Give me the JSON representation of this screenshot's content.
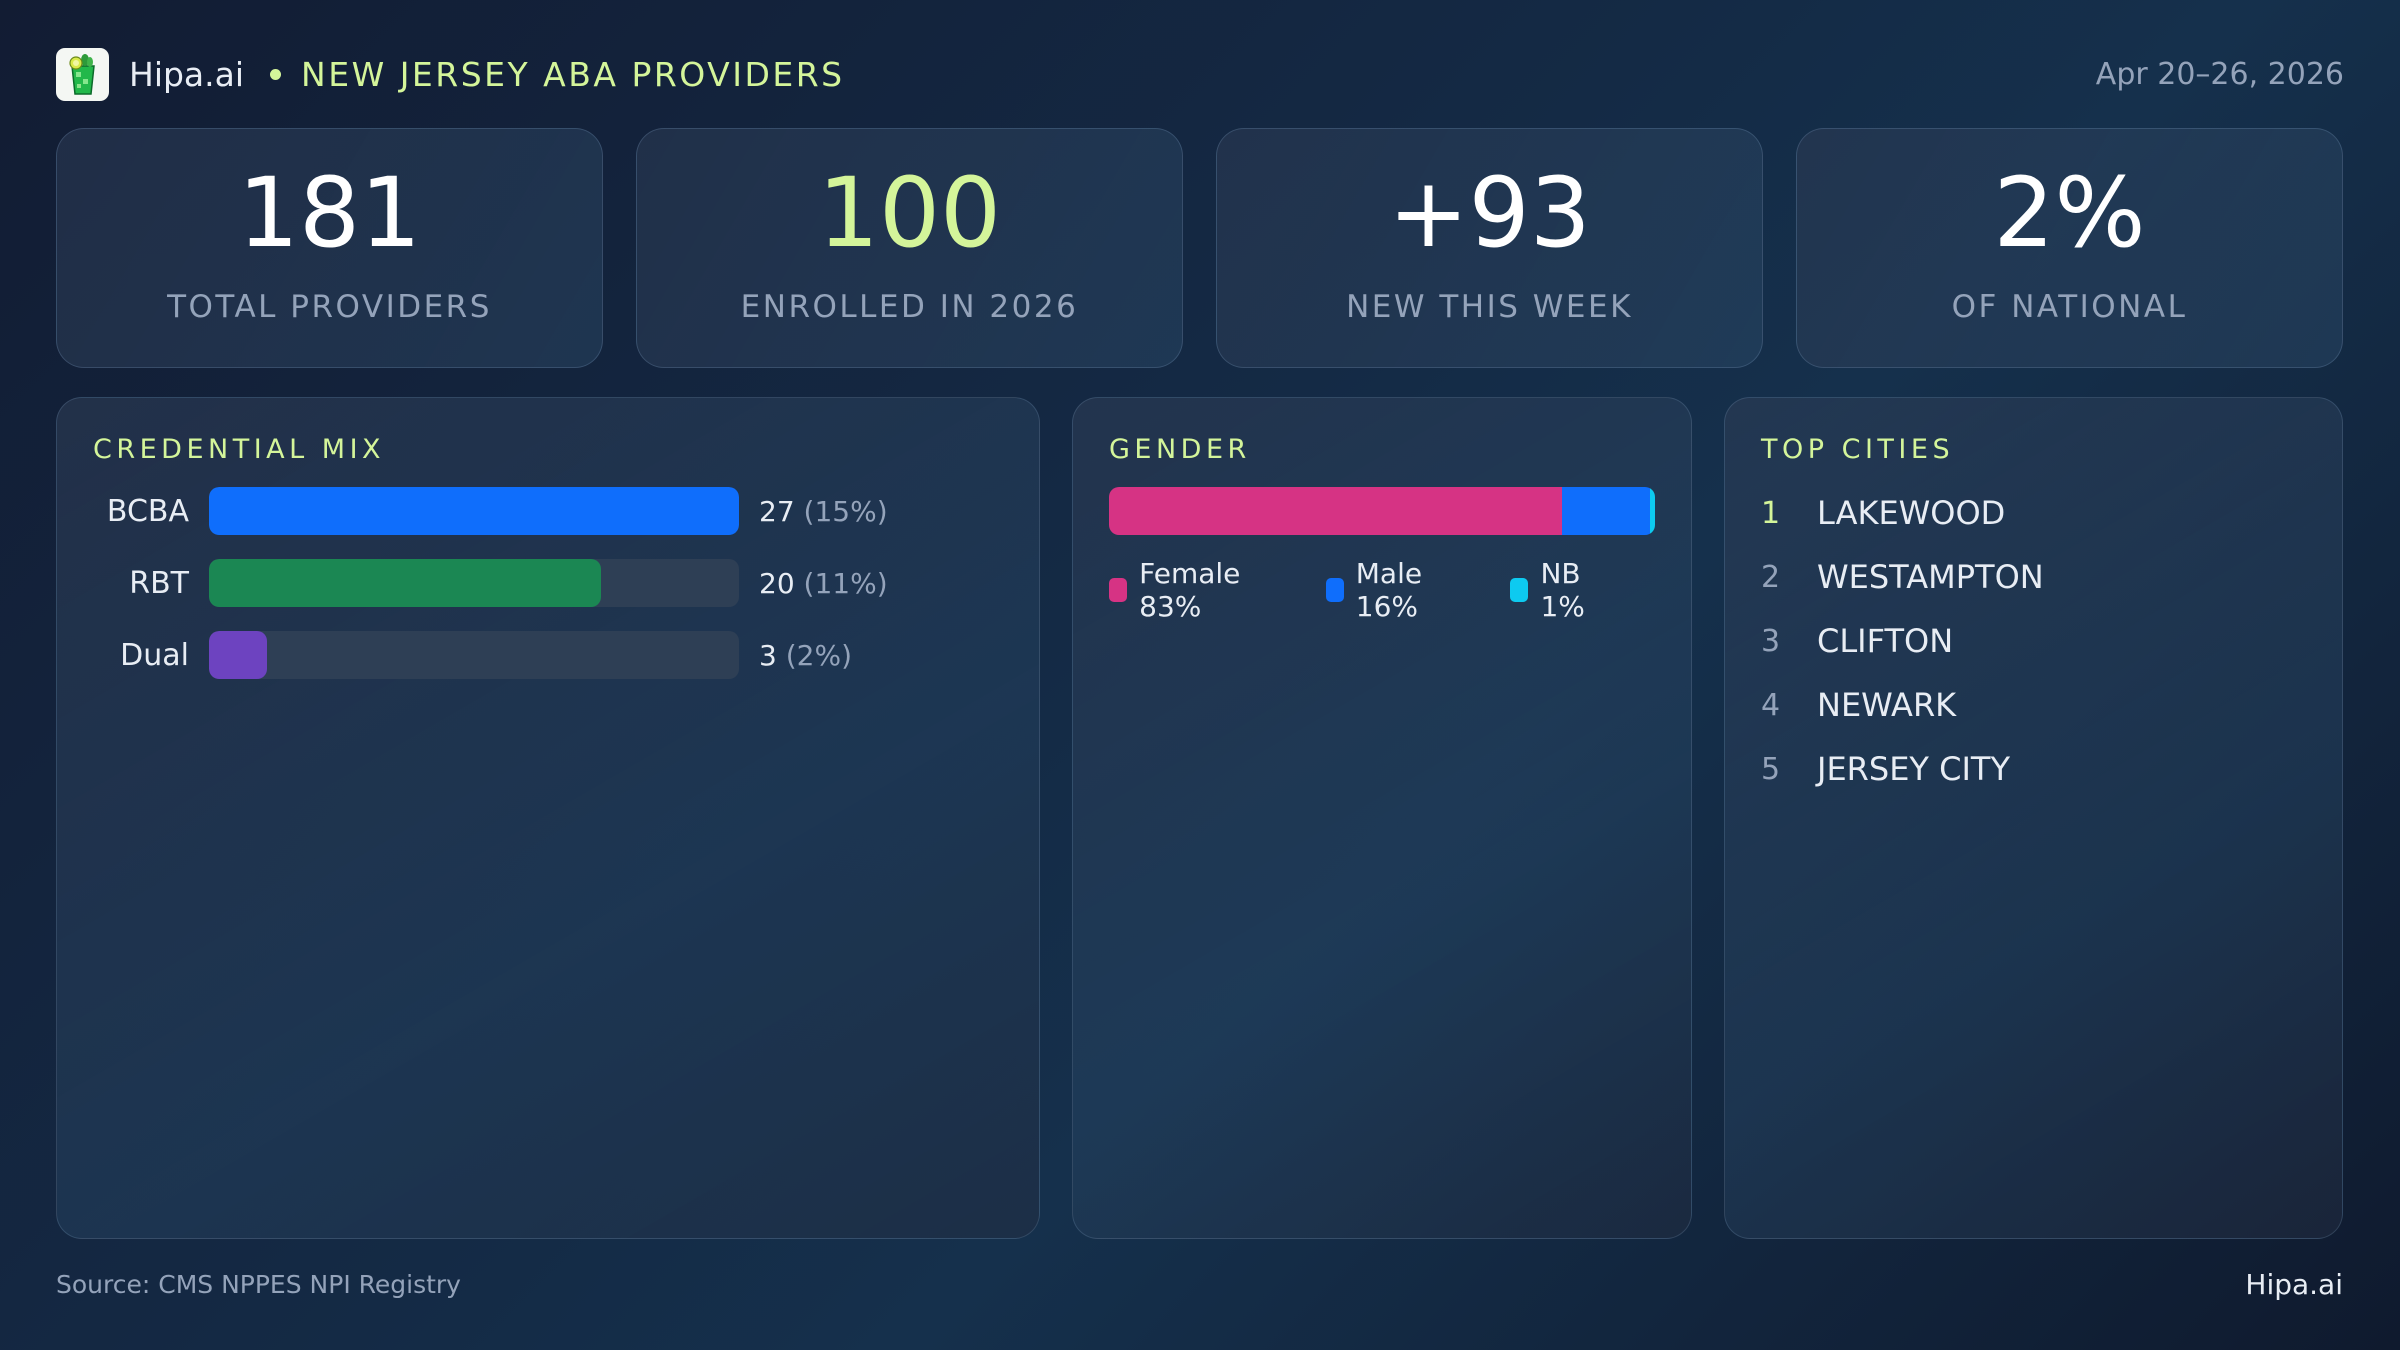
{
  "header": {
    "brand": "Hipa.ai",
    "logo_icon": "mojito-glass-icon",
    "title": "NEW JERSEY ABA PROVIDERS",
    "date_range": "Apr 20–26, 2026"
  },
  "stats": [
    {
      "value": "181",
      "label": "TOTAL PROVIDERS",
      "accent": false
    },
    {
      "value": "100",
      "label": "ENROLLED IN 2026",
      "accent": true
    },
    {
      "value": "+93",
      "label": "NEW THIS WEEK",
      "accent": false
    },
    {
      "value": "2%",
      "label": "OF NATIONAL",
      "accent": false
    }
  ],
  "credential_mix": {
    "title": "CREDENTIAL MIX",
    "rows": [
      {
        "label": "BCBA",
        "count": "27",
        "pct": "(15%)",
        "fill": 100,
        "color": "#0f6efc"
      },
      {
        "label": "RBT",
        "count": "20",
        "pct": "(11%)",
        "fill": 74,
        "color": "#1b8753"
      },
      {
        "label": "Dual",
        "count": "3",
        "pct": "(2%)",
        "fill": 11,
        "color": "#6d43c0"
      }
    ]
  },
  "gender": {
    "title": "GENDER",
    "segments": [
      {
        "label": "Female 83%",
        "pct": 83,
        "color": "#d63384"
      },
      {
        "label": "Male 16%",
        "pct": 16,
        "color": "#0f6efc"
      },
      {
        "label": "NB 1%",
        "pct": 1,
        "color": "#0dcaf0"
      }
    ]
  },
  "top_cities": {
    "title": "TOP CITIES",
    "items": [
      {
        "rank": "1",
        "name": "LAKEWOOD"
      },
      {
        "rank": "2",
        "name": "WESTAMPTON"
      },
      {
        "rank": "3",
        "name": "CLIFTON"
      },
      {
        "rank": "4",
        "name": "NEWARK"
      },
      {
        "rank": "5",
        "name": "JERSEY CITY"
      }
    ]
  },
  "footer": {
    "source": "Source: CMS NPPES NPI Registry",
    "brand": "Hipa.ai"
  },
  "colors": {
    "accent": "#d4f59a",
    "muted": "#94a3ba",
    "bcba": "#0f6efc",
    "rbt": "#1b8753",
    "dual": "#6d43c0",
    "female": "#d63384",
    "male": "#0f6efc",
    "nb": "#0dcaf0"
  },
  "chart_data": [
    {
      "type": "bar",
      "title": "CREDENTIAL MIX",
      "orientation": "horizontal",
      "categories": [
        "BCBA",
        "RBT",
        "Dual"
      ],
      "values": [
        27,
        20,
        3
      ],
      "percent_labels": [
        "15%",
        "11%",
        "2%"
      ],
      "xlabel": "",
      "ylabel": ""
    },
    {
      "type": "bar",
      "title": "GENDER",
      "orientation": "horizontal-stacked",
      "categories": [
        "Female",
        "Male",
        "NB"
      ],
      "values": [
        83,
        16,
        1
      ],
      "unit": "%"
    }
  ]
}
